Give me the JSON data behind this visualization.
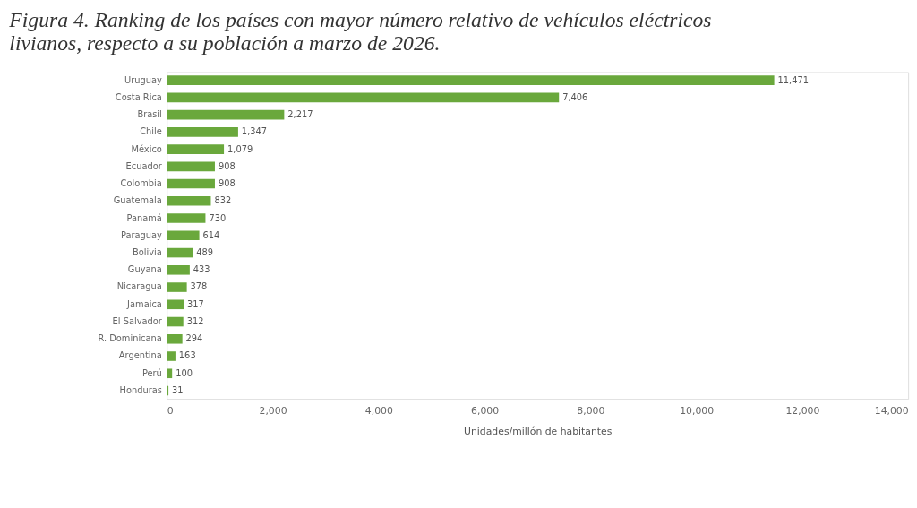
{
  "chart_data": {
    "type": "bar",
    "orientation": "horizontal",
    "title": "Figura 4. Ranking de los países con mayor número relativo de vehículos eléctricos livianos, respecto a su población a marzo de 2026.",
    "xlabel": "Unidades/millón de habitantes",
    "categories": [
      "Uruguay",
      "Costa Rica",
      "Brasil",
      "Chile",
      "México",
      "Ecuador",
      "Colombia",
      "Guatemala",
      "Panamá",
      "Paraguay",
      "Bolivia",
      "Guyana",
      "Nicaragua",
      "Jamaica",
      "El Salvador",
      "R. Dominicana",
      "Argentina",
      "Perú",
      "Honduras"
    ],
    "values": [
      11471,
      7406,
      2217,
      1347,
      1079,
      908,
      908,
      832,
      730,
      614,
      489,
      433,
      378,
      317,
      312,
      294,
      163,
      100,
      31
    ],
    "value_labels": [
      "11,471",
      "7,406",
      "2,217",
      "1,347",
      "1,079",
      "908",
      "908",
      "832",
      "730",
      "614",
      "489",
      "433",
      "378",
      "317",
      "312",
      "294",
      "163",
      "100",
      "31"
    ],
    "color": "#6aa83c",
    "xlim": [
      0,
      14000
    ],
    "xticks": [
      0,
      {
        "value": 2000,
        "label": "2,000"
      },
      {
        "value": 4000,
        "label": "4,000"
      },
      {
        "value": 6000,
        "label": "6,000"
      },
      {
        "value": 8000,
        "label": "8,000"
      },
      {
        "value": 10000,
        "label": "10,000"
      },
      {
        "value": 12000,
        "label": "12,000"
      },
      {
        "value": 14000,
        "label": "14,000"
      }
    ],
    "grid": false
  }
}
